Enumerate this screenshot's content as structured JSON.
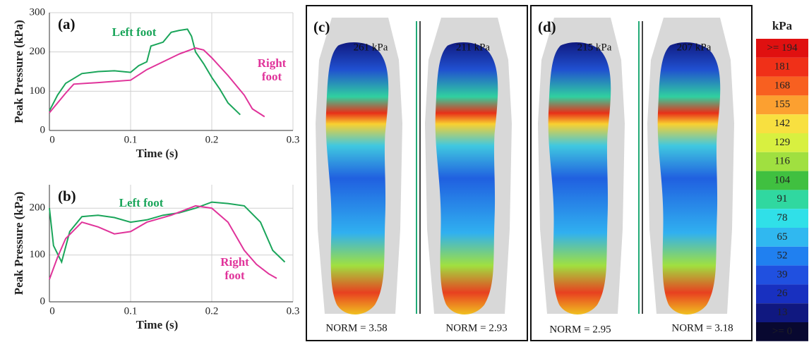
{
  "chart_data": [
    {
      "type": "line",
      "panel": "(a)",
      "x_label": "Time (s)",
      "y_label": "Peak Pressure (kPa)",
      "xlim": [
        0,
        0.3
      ],
      "ylim": [
        0,
        300
      ],
      "xticks": [
        0,
        0.1,
        0.2,
        0.3
      ],
      "yticks": [
        0,
        100,
        200,
        300
      ],
      "grid": true,
      "series": [
        {
          "name": "Left foot",
          "color": "#1aa55a",
          "x": [
            0,
            0.01,
            0.02,
            0.04,
            0.06,
            0.08,
            0.1,
            0.11,
            0.12,
            0.125,
            0.14,
            0.15,
            0.16,
            0.17,
            0.175,
            0.18,
            0.19,
            0.2,
            0.21,
            0.22,
            0.235
          ],
          "values": [
            50,
            90,
            120,
            145,
            150,
            152,
            148,
            165,
            175,
            215,
            225,
            250,
            255,
            258,
            240,
            200,
            170,
            135,
            105,
            70,
            40
          ]
        },
        {
          "name": "Right foot",
          "color": "#e0339a",
          "x": [
            0,
            0.01,
            0.02,
            0.03,
            0.06,
            0.08,
            0.1,
            0.12,
            0.14,
            0.16,
            0.18,
            0.19,
            0.2,
            0.22,
            0.24,
            0.25,
            0.265
          ],
          "values": [
            45,
            70,
            95,
            118,
            122,
            125,
            128,
            155,
            175,
            195,
            210,
            205,
            185,
            140,
            90,
            55,
            35
          ]
        }
      ]
    },
    {
      "type": "line",
      "panel": "(b)",
      "x_label": "Time (s)",
      "y_label": "Peak Pressure (kPa)",
      "xlim": [
        0,
        0.3
      ],
      "ylim": [
        0,
        250
      ],
      "xticks": [
        0,
        0.1,
        0.2,
        0.3
      ],
      "yticks": [
        0,
        100,
        200
      ],
      "grid": true,
      "series": [
        {
          "name": "Left foot",
          "color": "#1aa55a",
          "x": [
            0,
            0.005,
            0.015,
            0.025,
            0.04,
            0.06,
            0.08,
            0.1,
            0.12,
            0.14,
            0.16,
            0.18,
            0.2,
            0.22,
            0.24,
            0.26,
            0.275,
            0.29
          ],
          "values": [
            200,
            120,
            85,
            150,
            182,
            185,
            180,
            170,
            175,
            185,
            190,
            200,
            213,
            210,
            205,
            170,
            110,
            85
          ]
        },
        {
          "name": "Right foot",
          "color": "#e0339a",
          "x": [
            0,
            0.01,
            0.02,
            0.04,
            0.06,
            0.08,
            0.1,
            0.12,
            0.15,
            0.18,
            0.2,
            0.22,
            0.24,
            0.255,
            0.27,
            0.28
          ],
          "values": [
            48,
            95,
            135,
            170,
            160,
            145,
            150,
            170,
            185,
            205,
            200,
            170,
            110,
            80,
            60,
            50
          ]
        }
      ]
    }
  ],
  "maps": [
    {
      "panel": "(c)",
      "peaks": [
        "261 kPa",
        "211 kPa"
      ],
      "norms": [
        "NORM = 3.58",
        "NORM = 2.93"
      ]
    },
    {
      "panel": "(d)",
      "peaks": [
        "215 kPa",
        "207 kPa"
      ],
      "norms": [
        "NORM = 2.95",
        "NORM = 3.18"
      ]
    }
  ],
  "scale": {
    "title": "kPa",
    "labels": [
      ">= 194",
      "181",
      "168",
      "155",
      "142",
      "129",
      "116",
      "104",
      "91",
      "78",
      "65",
      "52",
      "39",
      "26",
      "13",
      ">= 0"
    ],
    "colors": [
      "#e01010",
      "#f03018",
      "#f86020",
      "#fca030",
      "#f8e040",
      "#d8f040",
      "#a0e040",
      "#40c040",
      "#30d8a0",
      "#30e0e8",
      "#30b8f0",
      "#2080f0",
      "#2050e0",
      "#1830c0",
      "#101880",
      "#080830"
    ]
  }
}
